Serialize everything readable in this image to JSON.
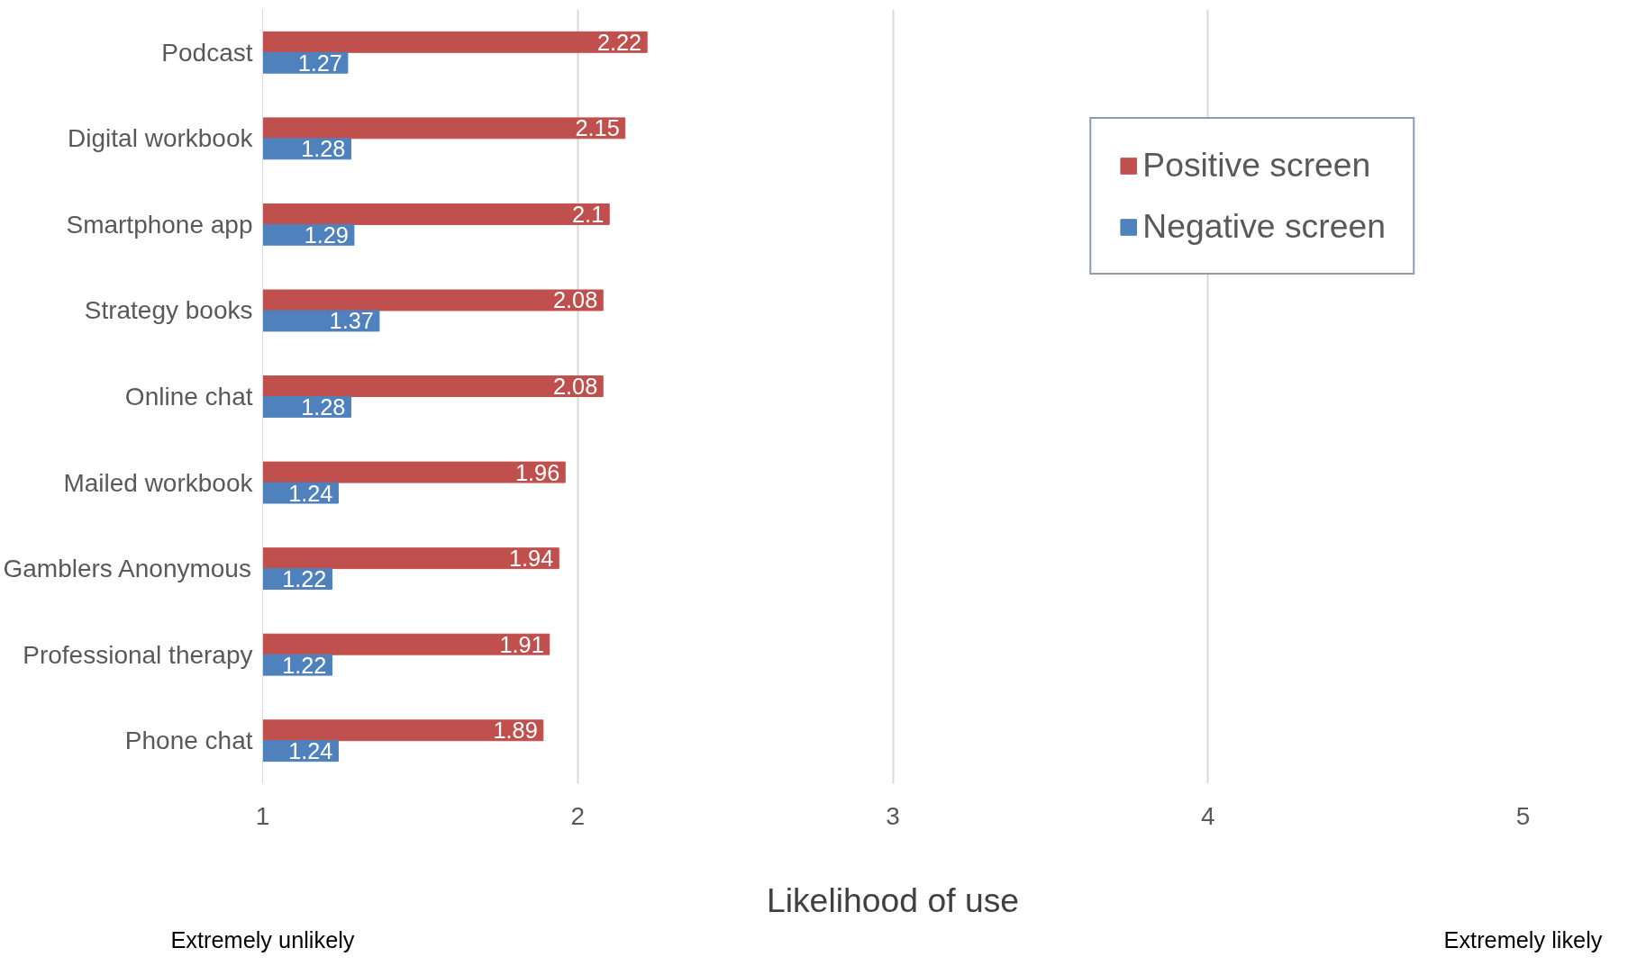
{
  "chart_data": {
    "type": "bar",
    "orientation": "horizontal",
    "xlabel": "Likelihood of use",
    "categories": [
      "Podcast",
      "Digital workbook",
      "Smartphone app",
      "Strategy books",
      "Online chat",
      "Mailed workbook",
      "Gamblers Anonymous",
      "Professional therapy",
      "Phone chat"
    ],
    "series": [
      {
        "name": "Positive screen",
        "color": "#c0504d",
        "values": [
          2.22,
          2.15,
          2.1,
          2.08,
          2.08,
          1.96,
          1.94,
          1.91,
          1.89
        ]
      },
      {
        "name": "Negative screen",
        "color": "#4f81bd",
        "values": [
          1.27,
          1.28,
          1.29,
          1.37,
          1.28,
          1.24,
          1.22,
          1.22,
          1.24
        ]
      }
    ],
    "xlim": [
      1,
      5
    ],
    "xticks": [
      1,
      2,
      3,
      4,
      5
    ],
    "grid": "x",
    "legend": "top right",
    "data_labels": true,
    "annotations": [
      "Extremely unlikely",
      "Extremely likely"
    ]
  }
}
